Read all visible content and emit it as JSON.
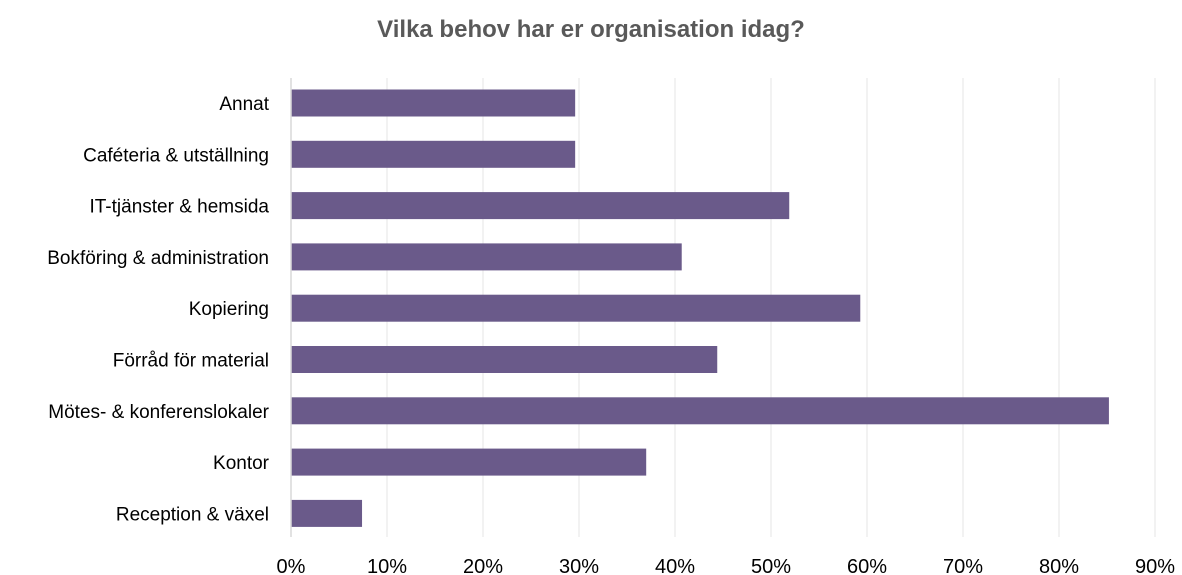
{
  "chart_data": {
    "type": "bar",
    "orientation": "horizontal",
    "title": "Vilka behov har er organisation idag?",
    "categories": [
      "Annat",
      "Caféteria & utställning",
      "IT-tjänster & hemsida",
      "Bokföring & administration",
      "Kopiering",
      "Förråd för material",
      "Mötes- & konferenslokaler",
      "Kontor",
      "Reception & växel"
    ],
    "values": [
      29.6,
      29.6,
      51.9,
      40.7,
      59.3,
      44.4,
      85.2,
      37.0,
      7.4
    ],
    "xlim": [
      0,
      90
    ],
    "ticks": [
      0,
      10,
      20,
      30,
      40,
      50,
      60,
      70,
      80,
      90
    ],
    "tick_labels": [
      "0%",
      "10%",
      "20%",
      "30%",
      "40%",
      "50%",
      "60%",
      "70%",
      "80%",
      "90%"
    ],
    "xlabel": "",
    "ylabel": "",
    "grid": true,
    "legend": "none",
    "bar_color": "#6A5A8A",
    "grid_color": "#E6E6E6",
    "axis_color": "#D9D9D9"
  }
}
